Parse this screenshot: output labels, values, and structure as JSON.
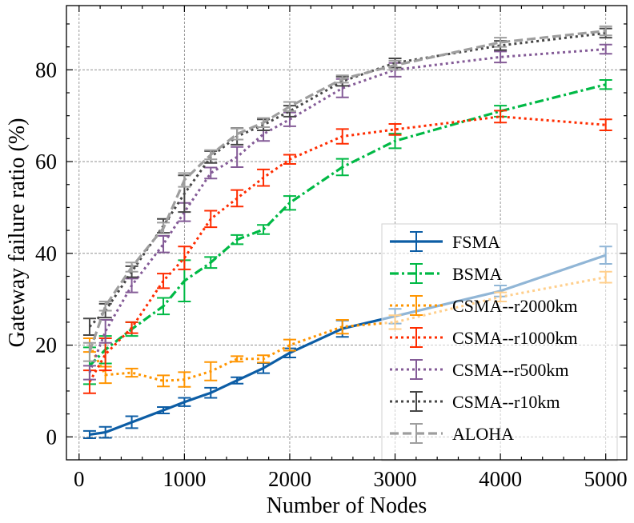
{
  "chart_data": {
    "type": "line",
    "title": "",
    "xlabel": "Number of Nodes",
    "ylabel": "Gateway failure ratio (%)",
    "xlim": [
      -120,
      5200
    ],
    "ylim": [
      -5,
      94
    ],
    "xticks": [
      0,
      1000,
      2000,
      3000,
      4000,
      5000
    ],
    "yticks": [
      0,
      20,
      40,
      60,
      80
    ],
    "grid": true,
    "legend_position": "center-right",
    "x": [
      100,
      250,
      500,
      800,
      1000,
      1250,
      1500,
      1750,
      2000,
      2500,
      3000,
      4000,
      5000
    ],
    "series": [
      {
        "name": "FSMA",
        "color": "#0C5DA5",
        "dash": "solid",
        "width": 3.2,
        "values": [
          0.5,
          1.0,
          3.2,
          5.8,
          7.6,
          9.6,
          12.3,
          15.0,
          18.3,
          23.6,
          26.3,
          31.8,
          39.6
        ],
        "errors": [
          0.8,
          1.2,
          1.3,
          0.7,
          0.9,
          1.1,
          0.7,
          1.1,
          1.0,
          1.8,
          1.6,
          1.2,
          1.9
        ]
      },
      {
        "name": "BSMA",
        "color": "#00B945",
        "dash": "dashdot",
        "width": 3.2,
        "values": [
          15.5,
          19.0,
          23.5,
          28.5,
          34.0,
          38.0,
          43.0,
          45.2,
          51.0,
          58.8,
          64.5,
          71.0,
          76.8
        ],
        "errors": [
          4.0,
          3.0,
          1.5,
          1.8,
          4.5,
          1.2,
          1.0,
          1.0,
          1.5,
          1.8,
          1.6,
          1.2,
          1.0
        ]
      },
      {
        "name": "CSMA--r2000km",
        "color": "#FF9500",
        "dash": "dotted",
        "width": 3.0,
        "values": [
          20.0,
          13.5,
          14.0,
          12.2,
          12.5,
          14.3,
          17.0,
          17.0,
          20.0,
          24.0,
          25.0,
          30.5,
          34.8
        ],
        "errors": [
          1.5,
          1.8,
          0.9,
          1.2,
          1.6,
          2.0,
          0.6,
          0.8,
          1.2,
          1.5,
          1.5,
          1.0,
          1.2
        ]
      },
      {
        "name": "CSMA--r1000km",
        "color": "#FF2C00",
        "dash": "dotted",
        "width": 3.0,
        "values": [
          12.0,
          18.0,
          23.8,
          34.0,
          39.0,
          47.5,
          52.0,
          56.5,
          60.5,
          65.5,
          67.0,
          69.8,
          68.0
        ],
        "errors": [
          2.5,
          3.5,
          1.2,
          1.6,
          2.5,
          1.8,
          1.8,
          1.8,
          1.0,
          1.6,
          1.2,
          1.3,
          1.2
        ]
      },
      {
        "name": "CSMA--r500km",
        "color": "#845B97",
        "dash": "dotted",
        "width": 3.0,
        "values": [
          14.0,
          23.0,
          33.0,
          42.0,
          49.0,
          57.5,
          61.0,
          66.0,
          69.2,
          76.0,
          80.0,
          82.8,
          84.5
        ],
        "errors": [
          1.5,
          2.5,
          1.5,
          1.8,
          2.0,
          1.2,
          2.2,
          1.5,
          1.5,
          2.0,
          1.5,
          1.2,
          1.0
        ]
      },
      {
        "name": "CSMA--r10km",
        "color": "#474747",
        "dash": "dotted",
        "width": 3.0,
        "values": [
          24.0,
          27.5,
          36.0,
          46.0,
          53.0,
          61.0,
          65.5,
          68.0,
          71.0,
          77.5,
          81.5,
          85.3,
          88.0
        ],
        "errors": [
          1.8,
          1.5,
          1.2,
          1.5,
          4.0,
          1.3,
          1.8,
          1.2,
          1.2,
          1.0,
          1.0,
          1.0,
          1.0
        ]
      },
      {
        "name": "ALOHA",
        "color": "#9E9E9E",
        "dash": "dashed",
        "width": 3.2,
        "values": [
          18.5,
          28.5,
          37.0,
          45.5,
          56.0,
          61.5,
          66.0,
          68.5,
          72.0,
          78.0,
          81.0,
          86.0,
          88.5
        ],
        "errors": [
          2.0,
          1.0,
          1.0,
          1.2,
          1.5,
          1.0,
          1.2,
          1.0,
          1.0,
          0.8,
          1.0,
          1.0,
          1.0
        ]
      }
    ]
  }
}
